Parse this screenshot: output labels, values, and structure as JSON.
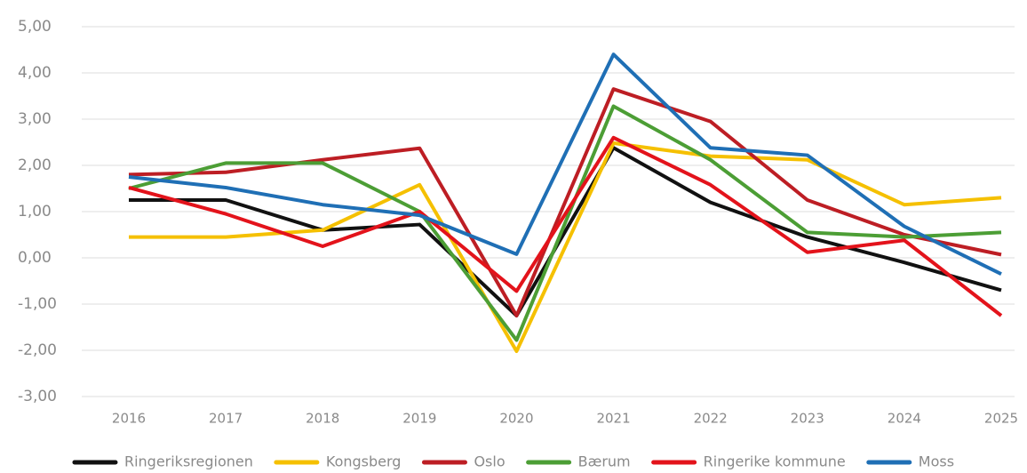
{
  "chart_data": {
    "type": "line",
    "categories": [
      "2016",
      "2017",
      "2018",
      "2019",
      "2020",
      "2021",
      "2022",
      "2023",
      "2024",
      "2025"
    ],
    "series": [
      {
        "name": "Ringeriksregionen",
        "color": "#111111",
        "values": [
          1.25,
          1.25,
          0.6,
          0.72,
          -1.25,
          2.38,
          1.2,
          0.45,
          -0.1,
          -0.7
        ]
      },
      {
        "name": "Kongsberg",
        "color": "#f5c000",
        "values": [
          0.45,
          0.45,
          0.6,
          1.58,
          -2.02,
          2.48,
          2.2,
          2.12,
          1.15,
          1.3
        ]
      },
      {
        "name": "Oslo",
        "color": "#bd1e24",
        "values": [
          1.8,
          1.85,
          2.12,
          2.37,
          -1.25,
          3.65,
          2.95,
          1.25,
          0.5,
          0.07
        ]
      },
      {
        "name": "Bærum",
        "color": "#4c9e35",
        "values": [
          1.5,
          2.05,
          2.05,
          1.0,
          -1.78,
          3.28,
          2.12,
          0.55,
          0.45,
          0.55
        ]
      },
      {
        "name": "Ringerike kommune",
        "color": "#e3131b",
        "values": [
          1.52,
          0.95,
          0.25,
          1.0,
          -0.72,
          2.6,
          1.58,
          0.12,
          0.38,
          -1.25
        ]
      },
      {
        "name": "Moss",
        "color": "#1f6fb5",
        "values": [
          1.75,
          1.52,
          1.15,
          0.92,
          0.08,
          4.4,
          2.38,
          2.22,
          0.68,
          -0.35
        ]
      }
    ],
    "ylim": [
      -3,
      5
    ],
    "yticks": [
      {
        "value": -3,
        "label": "-3,00"
      },
      {
        "value": -2,
        "label": "-2,00"
      },
      {
        "value": -1,
        "label": "-1,00"
      },
      {
        "value": 0,
        "label": "0,00"
      },
      {
        "value": 1,
        "label": "1,00"
      },
      {
        "value": 2,
        "label": "2,00"
      },
      {
        "value": 3,
        "label": "3,00"
      },
      {
        "value": 4,
        "label": "4,00"
      },
      {
        "value": 5,
        "label": "5,00"
      }
    ],
    "grid": true,
    "legend": "bottom"
  }
}
